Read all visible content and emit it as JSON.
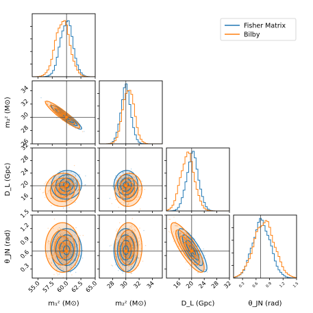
{
  "chart_data": {
    "type": "corner",
    "parameters": [
      {
        "key": "m1",
        "axis_label": "m₁ᶻ (M⊙)",
        "truth": 60.0,
        "range": [
          54.0,
          65.0
        ],
        "ticks": [
          "55.0",
          "57.5",
          "60.0",
          "62.5",
          "65.0"
        ],
        "tick_values": [
          55.0,
          57.5,
          60.0,
          62.5,
          65.0
        ]
      },
      {
        "key": "m2",
        "axis_label": "m₂ᶻ (M⊙)",
        "truth": 30.0,
        "range": [
          26.0,
          35.5
        ],
        "ticks": [
          "28",
          "30",
          "32",
          "34"
        ],
        "tick_values": [
          28,
          30,
          32,
          34
        ]
      },
      {
        "key": "dl",
        "axis_label": "D_L (Gpc)",
        "truth": 20.0,
        "range": [
          12.0,
          32.0
        ],
        "ticks": [
          "16",
          "20",
          "24",
          "28",
          "32"
        ],
        "tick_values": [
          16,
          20,
          24,
          28,
          32
        ],
        "y_ticks": [
          "16",
          "20",
          "24",
          "28",
          "32"
        ],
        "y_tick_values": [
          16,
          20,
          24,
          28,
          32
        ]
      },
      {
        "key": "theta",
        "axis_label": "θ_JN (rad)",
        "truth": 0.7,
        "range": [
          0.1,
          1.5
        ],
        "ticks": [
          "0.3",
          "0.6",
          "0.9",
          "1.2",
          "1.5"
        ],
        "tick_values": [
          0.3,
          0.6,
          0.9,
          1.2,
          1.5
        ],
        "y_ticks": [
          "0.3",
          "0.6",
          "0.9",
          "1.2",
          "1.5"
        ],
        "y_tick_values": [
          0.3,
          0.6,
          0.9,
          1.2,
          1.5
        ]
      }
    ],
    "m2_y_ticks": [
      "26",
      "28",
      "30",
      "32",
      "34"
    ],
    "m2_y_tick_values": [
      26,
      28,
      30,
      32,
      34
    ],
    "series": [
      {
        "name": "Fisher Matrix",
        "color": "#1f77b4",
        "means": [
          60.0,
          30.0,
          20.3,
          0.72
        ],
        "sigmas": [
          1.1,
          0.75,
          1.9,
          0.2
        ]
      },
      {
        "name": "Bilby",
        "color": "#ff7f0e",
        "means": [
          59.3,
          30.4,
          18.7,
          0.78
        ],
        "sigmas": [
          1.25,
          0.85,
          2.2,
          0.23
        ]
      }
    ],
    "correlations": {
      "m1_m2": -0.93,
      "m1_dl": 0.05,
      "m2_dl": 0.05,
      "m1_theta": 0.0,
      "m2_theta": 0.0,
      "dl_theta": -0.82
    },
    "legend_position": "top-right",
    "grid": false
  }
}
